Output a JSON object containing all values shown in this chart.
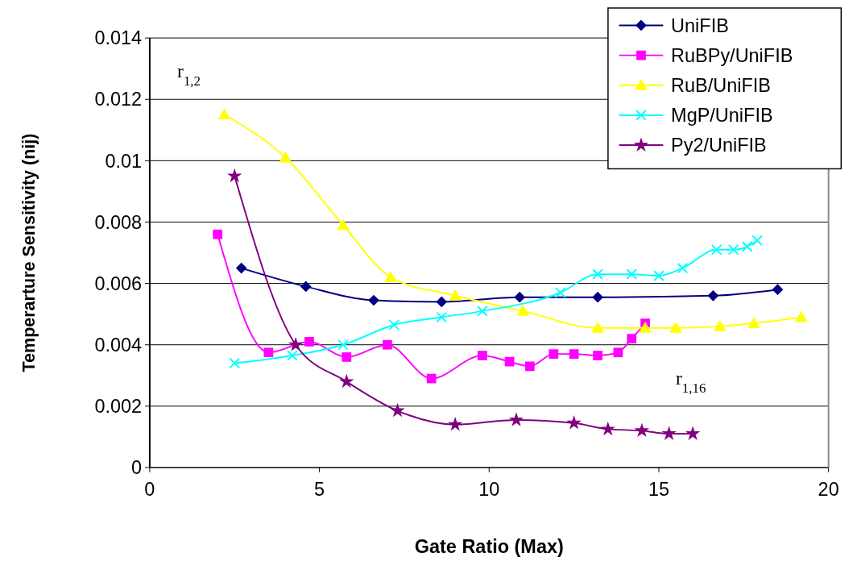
{
  "chart_data": {
    "type": "line",
    "xlabel": "Gate Ratio (Max)",
    "ylabel": "Temperarture Sensitivity (nij)",
    "xlim": [
      0,
      20
    ],
    "xticks": [
      0,
      5,
      10,
      15,
      20
    ],
    "ylim": [
      0,
      0.014
    ],
    "yticks": [
      0,
      0.002,
      0.004,
      0.006,
      0.008,
      0.01,
      0.012,
      0.014
    ],
    "grid": "y",
    "legend": "top right",
    "annotations": [
      "r$_{1,2}$",
      "r$_{1,16}$"
    ],
    "series": [
      {
        "name": "UniFIB",
        "color": "#000080",
        "marker": "diamond",
        "x": [
          2.7,
          4.6,
          6.6,
          8.6,
          10.9,
          13.2,
          16.6,
          18.5
        ],
        "values": [
          0.0065,
          0.0059,
          0.00545,
          0.0054,
          0.00555,
          0.00555,
          0.0056,
          0.0058
        ]
      },
      {
        "name": "RuBPy/UniFIB",
        "color": "#ff00ff",
        "marker": "square",
        "x": [
          2.0,
          3.5,
          4.7,
          5.8,
          7.0,
          8.3,
          9.8,
          10.6,
          11.2,
          11.9,
          12.5,
          13.2,
          13.8,
          14.2,
          14.6
        ],
        "values": [
          0.0076,
          0.00375,
          0.0041,
          0.0036,
          0.004,
          0.0029,
          0.00365,
          0.00345,
          0.0033,
          0.0037,
          0.0037,
          0.00365,
          0.00375,
          0.0042,
          0.0047
        ]
      },
      {
        "name": "RuB/UniFIB",
        "color": "#ffff00",
        "marker": "triangle",
        "x": [
          2.2,
          4.0,
          5.7,
          7.1,
          9.0,
          11.0,
          13.2,
          14.6,
          15.5,
          16.8,
          17.8,
          19.2
        ],
        "values": [
          0.0115,
          0.0101,
          0.0079,
          0.0062,
          0.0056,
          0.0051,
          0.00455,
          0.00455,
          0.00455,
          0.0046,
          0.0047,
          0.0049
        ]
      },
      {
        "name": "MgP/UniFIB",
        "color": "#00ffff",
        "marker": "cross",
        "x": [
          2.5,
          4.2,
          5.7,
          7.2,
          8.6,
          9.8,
          12.1,
          13.2,
          14.2,
          15.0,
          15.7,
          16.7,
          17.2,
          17.6,
          17.9
        ],
        "values": [
          0.0034,
          0.00365,
          0.004,
          0.00465,
          0.0049,
          0.0051,
          0.0057,
          0.0063,
          0.0063,
          0.00625,
          0.0065,
          0.0071,
          0.0071,
          0.0072,
          0.0074
        ]
      },
      {
        "name": "Py2/UniFIB",
        "color": "#800080",
        "marker": "star",
        "x": [
          2.5,
          4.3,
          5.8,
          7.3,
          9.0,
          10.8,
          12.5,
          13.5,
          14.5,
          15.3,
          16.0
        ],
        "values": [
          0.0095,
          0.004,
          0.0028,
          0.00185,
          0.0014,
          0.00155,
          0.00145,
          0.00125,
          0.0012,
          0.0011,
          0.0011
        ]
      }
    ]
  }
}
